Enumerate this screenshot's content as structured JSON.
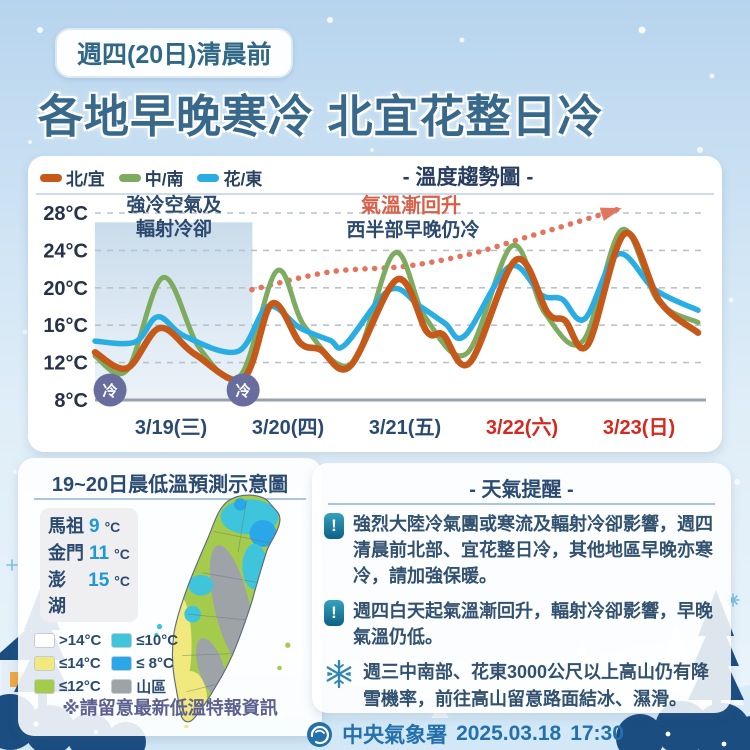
{
  "header": {
    "badge": "週四(20日)清晨前",
    "title": "各地早晚寒冷 北宜花整日冷"
  },
  "chart_data": {
    "type": "line",
    "title": "- 溫度趨勢圖 -",
    "y_unit": "°C",
    "y_ticks": [
      28,
      24,
      20,
      16,
      12,
      8
    ],
    "ylim": [
      8,
      29.5
    ],
    "x_labels": [
      {
        "label": "3/19(三)",
        "color": "#2b4a70"
      },
      {
        "label": "3/20(四)",
        "color": "#2b4a70"
      },
      {
        "label": "3/21(五)",
        "color": "#2b4a70"
      },
      {
        "label": "3/22(六)",
        "color": "#d6281e"
      },
      {
        "label": "3/23(日)",
        "color": "#d6281e"
      }
    ],
    "legend": [
      {
        "label": "北/宜",
        "color": "#c4591a"
      },
      {
        "label": "中/南",
        "color": "#7dac60"
      },
      {
        "label": "花/東",
        "color": "#29ade2"
      }
    ],
    "series": [
      {
        "name": "中/南",
        "color": "#7dac60",
        "width": 5,
        "points": [
          [
            -3.6,
            12.7
          ],
          [
            3.0,
            11.2
          ],
          [
            10.4,
            21.1
          ],
          [
            17.9,
            13.5
          ],
          [
            26.2,
            10.6
          ],
          [
            33.7,
            21.8
          ],
          [
            39.5,
            15.8
          ],
          [
            49.1,
            11.9
          ],
          [
            57.8,
            23.7
          ],
          [
            64.1,
            16.9
          ],
          [
            72.7,
            13.0
          ],
          [
            82.0,
            24.5
          ],
          [
            88.7,
            17.3
          ],
          [
            96.5,
            14.3
          ],
          [
            104.5,
            26.2
          ],
          [
            111.9,
            18.6
          ],
          [
            120.1,
            16.3
          ]
        ]
      },
      {
        "name": "花/東",
        "color": "#29ade2",
        "width": 5.5,
        "points": [
          [
            -3.6,
            14.3
          ],
          [
            4.6,
            14.2
          ],
          [
            9.3,
            16.9
          ],
          [
            14.9,
            14.8
          ],
          [
            25.7,
            13.2
          ],
          [
            31.9,
            18.0
          ],
          [
            38.5,
            15.7
          ],
          [
            44.6,
            14.4
          ],
          [
            47.7,
            13.9
          ],
          [
            56.9,
            19.8
          ],
          [
            63.1,
            18.0
          ],
          [
            68.2,
            16.2
          ],
          [
            72.3,
            14.9
          ],
          [
            81.5,
            22.3
          ],
          [
            88.1,
            19.2
          ],
          [
            92.2,
            18.8
          ],
          [
            96.9,
            16.7
          ],
          [
            103.7,
            23.6
          ],
          [
            111.3,
            19.8
          ],
          [
            120.1,
            17.6
          ]
        ]
      },
      {
        "name": "北/宜",
        "color": "#c4591a",
        "width": 6.5,
        "points": [
          [
            -3.6,
            13.1
          ],
          [
            3.0,
            11.4
          ],
          [
            9.7,
            15.7
          ],
          [
            16.9,
            12.9
          ],
          [
            26.8,
            10.3
          ],
          [
            32.7,
            18.3
          ],
          [
            38.5,
            14.1
          ],
          [
            42.6,
            13.4
          ],
          [
            48.7,
            11.6
          ],
          [
            58.4,
            20.9
          ],
          [
            64.5,
            15.3
          ],
          [
            67.8,
            15.0
          ],
          [
            73.3,
            12.0
          ],
          [
            82.8,
            23.0
          ],
          [
            89.3,
            17.3
          ],
          [
            92.8,
            16.5
          ],
          [
            97.5,
            13.9
          ],
          [
            105.1,
            25.8
          ],
          [
            112.3,
            18.5
          ],
          [
            120.1,
            15.2
          ]
        ]
      }
    ],
    "trend_arrow": {
      "color": "#e3745d",
      "points": [
        [
          28.6,
          19.8
        ],
        [
          44.6,
          21.7
        ],
        [
          60.0,
          22.3
        ],
        [
          73.3,
          23.6
        ],
        [
          84.2,
          25.3
        ],
        [
          93.8,
          26.8
        ],
        [
          103.7,
          28.4
        ]
      ]
    },
    "cold_shade": {
      "start_hour": -3.6,
      "end_hour": 28.7,
      "top_temp": 27.0,
      "badge_color": "#686d9d",
      "badge_hours": [
        -0.5,
        26.8
      ],
      "badge_labels": [
        "冷",
        "冷"
      ]
    },
    "annotations": {
      "cold_line1": "強冷空氣及",
      "cold_line2": "輻射冷卻",
      "warm_red": "氣溫漸回升",
      "warm_sub": "西半部早晚仍冷"
    }
  },
  "map_panel": {
    "title": "19~20日晨低溫預測示意圖",
    "islands": [
      {
        "name": "馬祖",
        "value": "9",
        "unit": "°C"
      },
      {
        "name": "金門",
        "value": "11",
        "unit": "°C"
      },
      {
        "name": "澎湖",
        "value": "15",
        "unit": "°C"
      }
    ],
    "legend": [
      {
        "label": ">14°C",
        "color": "#ffffff"
      },
      {
        "label": "≤14°C",
        "color": "#f1e87e"
      },
      {
        "label": "≤12°C",
        "color": "#a5cb4d"
      },
      {
        "label": "≤10°C",
        "color": "#3ec5dc"
      },
      {
        "label": "≤ 8°C",
        "color": "#2aa7e8"
      },
      {
        "label": "山區",
        "color": "#9ea3a8"
      }
    ],
    "note": "※請留意最新低溫特報資訊"
  },
  "reminder_panel": {
    "title": "- 天氣提醒 -",
    "warn_glyph": "!",
    "items": [
      {
        "text": "強烈大陸冷氣團或寒流及輻射冷卻影響，週四清晨前北部、宜花整日冷，其他地區早晚亦寒冷，請加強保暖。"
      },
      {
        "text": "週四白天起氣溫漸回升，輻射冷卻影響，早晚氣溫仍低。"
      },
      {
        "text": "週三中南部、花東3000公尺以上高山仍有降雪機率，前往高山留意路面結冰、濕滑。"
      }
    ]
  },
  "footer": {
    "agency": "中央氣象署",
    "date": "2025.03.18",
    "time": "17:30"
  }
}
